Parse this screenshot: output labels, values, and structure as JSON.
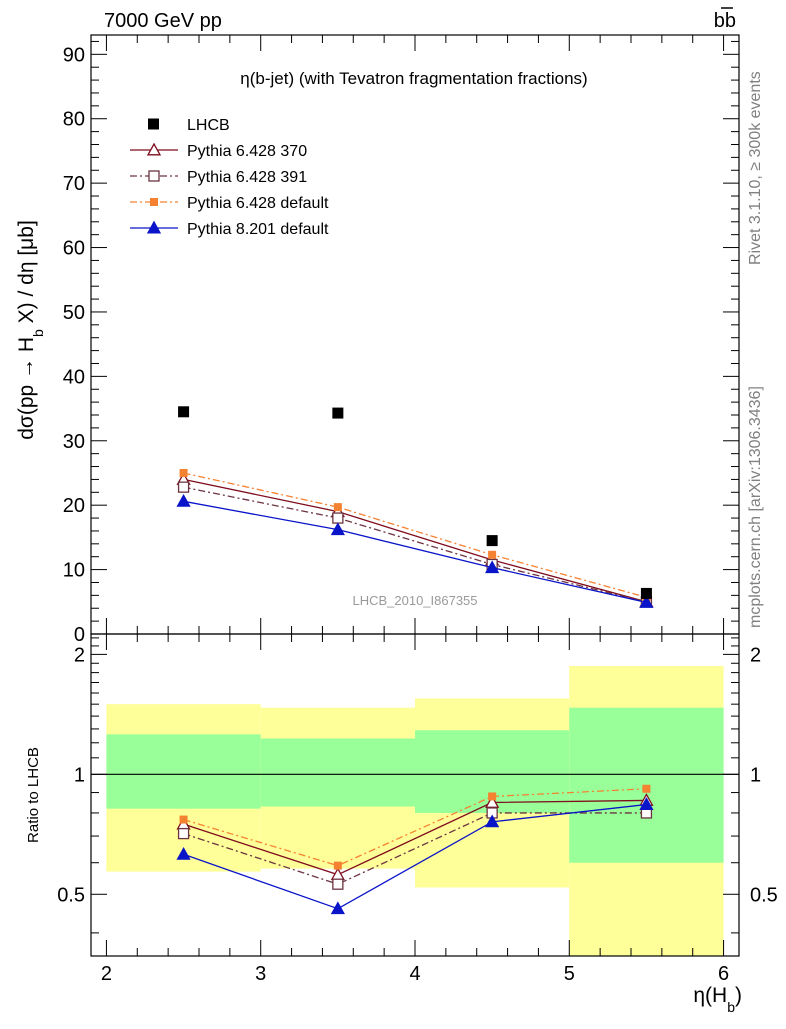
{
  "header": {
    "left": "7000 GeV pp",
    "right": "bb"
  },
  "side_labels": {
    "top": "Rivet 3.1.10, ≥ 300k events",
    "bottom": "mcplots.cern.ch [arXiv:1306.3436]"
  },
  "chart_data": [
    {
      "type": "scatter",
      "title": "η(b-jet) (with Tevatron fragmentation fractions)",
      "watermark": "LHCB_2010_I867355",
      "ylabel": "dσ(pp → H_b X) / dη [μb]",
      "ylim": [
        0,
        93
      ],
      "yticks": [
        0,
        10,
        20,
        30,
        40,
        50,
        60,
        70,
        80,
        90
      ],
      "xlim": [
        1.9,
        6.1
      ],
      "x": [
        2.5,
        3.5,
        4.5,
        5.5
      ],
      "data": {
        "name": "LHCB",
        "values": [
          34.5,
          34.3,
          14.5,
          6.3
        ],
        "color": "#000000"
      },
      "series": [
        {
          "name": "Pythia 6.428 370",
          "values": [
            24.0,
            19.0,
            11.5,
            5.0
          ],
          "color": "#7f0d1d",
          "marker": "open-triangle",
          "dash": ""
        },
        {
          "name": "Pythia 6.428 391",
          "values": [
            22.8,
            18.0,
            10.8,
            5.0
          ],
          "color": "#6b3440",
          "marker": "open-square",
          "dash": "7,3,2,3"
        },
        {
          "name": "Pythia 6.428 default",
          "values": [
            25.0,
            19.7,
            12.3,
            5.7
          ],
          "color": "#f58231",
          "marker": "filled-square",
          "dash": "7,3,2,3"
        },
        {
          "name": "Pythia 8.201 default",
          "values": [
            20.6,
            16.2,
            10.3,
            4.9
          ],
          "color": "#0a14c8",
          "marker": "filled-triangle",
          "dash": ""
        }
      ],
      "legend_position": "top-left"
    },
    {
      "type": "line",
      "ylabel": "Ratio to LHCB",
      "ylim": [
        0.35,
        2.25
      ],
      "yticks": [
        0.5,
        1,
        2
      ],
      "ytick_labels": [
        "0.5",
        "1",
        "2"
      ],
      "xlabel": "η(H_b)",
      "xlim": [
        1.9,
        6.1
      ],
      "xticks": [
        2,
        3,
        4,
        5,
        6
      ],
      "xtick_labels": [
        "2",
        "3",
        "4",
        "5",
        "6"
      ],
      "bins": [
        [
          2,
          3
        ],
        [
          3,
          4
        ],
        [
          4,
          5
        ],
        [
          5,
          6
        ]
      ],
      "band_yellow": [
        [
          0.57,
          1.5
        ],
        [
          0.58,
          1.47
        ],
        [
          0.52,
          1.55
        ],
        [
          0.35,
          1.87
        ]
      ],
      "band_green": [
        [
          0.82,
          1.26
        ],
        [
          0.83,
          1.23
        ],
        [
          0.8,
          1.29
        ],
        [
          0.6,
          1.47
        ]
      ],
      "band_colors": {
        "yellow": "#ffff99",
        "green": "#99ff99"
      },
      "x": [
        2.5,
        3.5,
        4.5,
        5.5
      ],
      "series": [
        {
          "name": "Pythia 6.428 370",
          "values": [
            0.75,
            0.56,
            0.85,
            0.86
          ]
        },
        {
          "name": "Pythia 6.428 391",
          "values": [
            0.71,
            0.53,
            0.8,
            0.8
          ]
        },
        {
          "name": "Pythia 6.428 default",
          "values": [
            0.77,
            0.59,
            0.88,
            0.92
          ]
        },
        {
          "name": "Pythia 8.201 default",
          "values": [
            0.63,
            0.46,
            0.76,
            0.84
          ]
        }
      ]
    }
  ]
}
